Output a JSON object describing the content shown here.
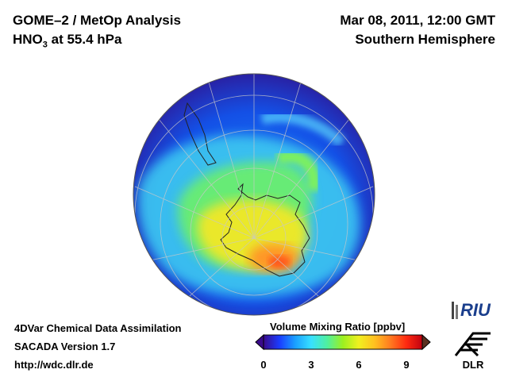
{
  "header": {
    "instrument": "GOME–2 / MetOp Analysis",
    "species_main": "HNO",
    "species_sub": "3",
    "species_rest": " at 55.4 hPa",
    "datetime": "Mar 08, 2011, 12:00 GMT",
    "region": "Southern Hemisphere"
  },
  "footer": {
    "line1": "4DVar Chemical Data Assimilation",
    "line2": "SACADA Version 1.7",
    "line3": "http://wdc.dlr.de"
  },
  "colorbar": {
    "title": "Volume Mixing Ratio [ppbv]",
    "ticks": [
      "0",
      "3",
      "6",
      "9"
    ],
    "min": 0,
    "max": 10,
    "colors": [
      "#3a0a8c",
      "#1a3cff",
      "#1aa0ff",
      "#38e0ff",
      "#4ff0a0",
      "#9cf020",
      "#f0f020",
      "#ffc020",
      "#ff7a20",
      "#ff2a10",
      "#c00010"
    ]
  },
  "logos": {
    "riu": "RIU",
    "dlr": "DLR"
  },
  "map": {
    "projection": "orthographic, south pole centered",
    "max_value_region": "over East Antarctica"
  }
}
